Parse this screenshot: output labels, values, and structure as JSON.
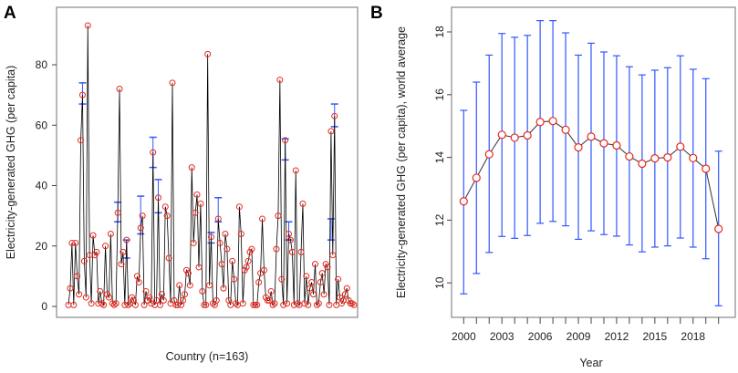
{
  "chart_data": [
    {
      "panel": "A",
      "type": "line",
      "xlabel": "Country (n=163)",
      "ylabel": "Electricity-generated GHG (per capita)",
      "ylim": [
        -2,
        95
      ],
      "yticks": [
        0,
        20,
        40,
        60,
        80
      ],
      "grid": false,
      "marker_color": "#e8281e",
      "line_color": "#000000",
      "errorbar_color": "#3355ff",
      "values": [
        0.5,
        6,
        21,
        0.5,
        21,
        10,
        4,
        55,
        70,
        15,
        3,
        93,
        17,
        1,
        23.5,
        17,
        18,
        1,
        5,
        1,
        0.5,
        20,
        4,
        3,
        24,
        1,
        0.5,
        1,
        31,
        72,
        14,
        18,
        0.5,
        22,
        0.5,
        1,
        3,
        2,
        0.5,
        10,
        8,
        26,
        30,
        0.5,
        5,
        2,
        3,
        1,
        51,
        0.5,
        2,
        36,
        0.5,
        4,
        2,
        33,
        30,
        16,
        1,
        74,
        2,
        0.5,
        0.5,
        7,
        0.5,
        2,
        4,
        12,
        11,
        7,
        46,
        21,
        31,
        37,
        13,
        34,
        5,
        0.5,
        0.5,
        83.5,
        7,
        23,
        1,
        0.5,
        2,
        29,
        21,
        14,
        6,
        24,
        19,
        2,
        0.5,
        15,
        9,
        1,
        0.5,
        33,
        24,
        1,
        12,
        13,
        15,
        18,
        19,
        0.5,
        0.5,
        0.5,
        8,
        11,
        29,
        12,
        3,
        2,
        2,
        5,
        0.5,
        1,
        19,
        30,
        75,
        9,
        0.5,
        55,
        1,
        24,
        22,
        18,
        0.5,
        45,
        1,
        0.5,
        18,
        34,
        1,
        10,
        0.5,
        6,
        8,
        4,
        14,
        0.5,
        1,
        8,
        11,
        4,
        14,
        13,
        0.5,
        58,
        17,
        63,
        0.5,
        9,
        3,
        1,
        2,
        4,
        6,
        2,
        1,
        1,
        0.5
      ],
      "error_bars": [
        {
          "index": 8,
          "low": 67,
          "high": 74
        },
        {
          "index": 28,
          "low": 28,
          "high": 34.5
        },
        {
          "index": 33,
          "low": 16,
          "high": 22
        },
        {
          "index": 41,
          "low": 24,
          "high": 36.5
        },
        {
          "index": 48,
          "low": 46,
          "high": 56
        },
        {
          "index": 51,
          "low": 31,
          "high": 42
        },
        {
          "index": 81,
          "low": 21,
          "high": 24.5
        },
        {
          "index": 85,
          "low": 28,
          "high": 36
        },
        {
          "index": 123,
          "low": 48.5,
          "high": 55.5
        },
        {
          "index": 125,
          "low": 22,
          "high": 28
        },
        {
          "index": 149,
          "low": 22,
          "high": 29
        },
        {
          "index": 151,
          "low": 59.5,
          "high": 67
        }
      ]
    },
    {
      "panel": "B",
      "type": "line",
      "xlabel": "Year",
      "ylabel": "Electricity-generated GHG (per capita), world average",
      "xlim": [
        2000,
        2020
      ],
      "ylim": [
        9,
        18.7
      ],
      "xtick_labels": [
        "2000",
        "2003",
        "2006",
        "2009",
        "2012",
        "2015",
        "2018"
      ],
      "yticks": [
        10,
        12,
        14,
        16,
        18
      ],
      "grid": false,
      "marker_color": "#e8281e",
      "line_color": "#333333",
      "errorbar_color": "#3355ff",
      "x": [
        2000,
        2001,
        2002,
        2003,
        2004,
        2005,
        2006,
        2007,
        2008,
        2009,
        2010,
        2011,
        2012,
        2013,
        2014,
        2015,
        2016,
        2017,
        2018,
        2019,
        2020
      ],
      "y": [
        12.6,
        13.35,
        14.1,
        14.72,
        14.63,
        14.7,
        15.13,
        15.16,
        14.88,
        14.32,
        14.66,
        14.45,
        14.38,
        14.03,
        13.8,
        13.97,
        14.0,
        14.34,
        13.98,
        13.64,
        11.72
      ],
      "upper": [
        15.5,
        16.4,
        17.26,
        17.95,
        17.83,
        17.89,
        18.36,
        18.36,
        17.97,
        17.26,
        17.64,
        17.36,
        17.24,
        16.89,
        16.63,
        16.78,
        16.86,
        17.24,
        16.81,
        16.51,
        14.2
      ],
      "lower": [
        9.65,
        10.3,
        10.97,
        11.48,
        11.42,
        11.51,
        11.9,
        11.96,
        11.82,
        11.39,
        11.66,
        11.54,
        11.49,
        11.21,
        10.99,
        11.14,
        11.18,
        11.43,
        11.14,
        10.77,
        9.27
      ]
    }
  ],
  "panels": {
    "a_letter": "A",
    "b_letter": "B"
  }
}
